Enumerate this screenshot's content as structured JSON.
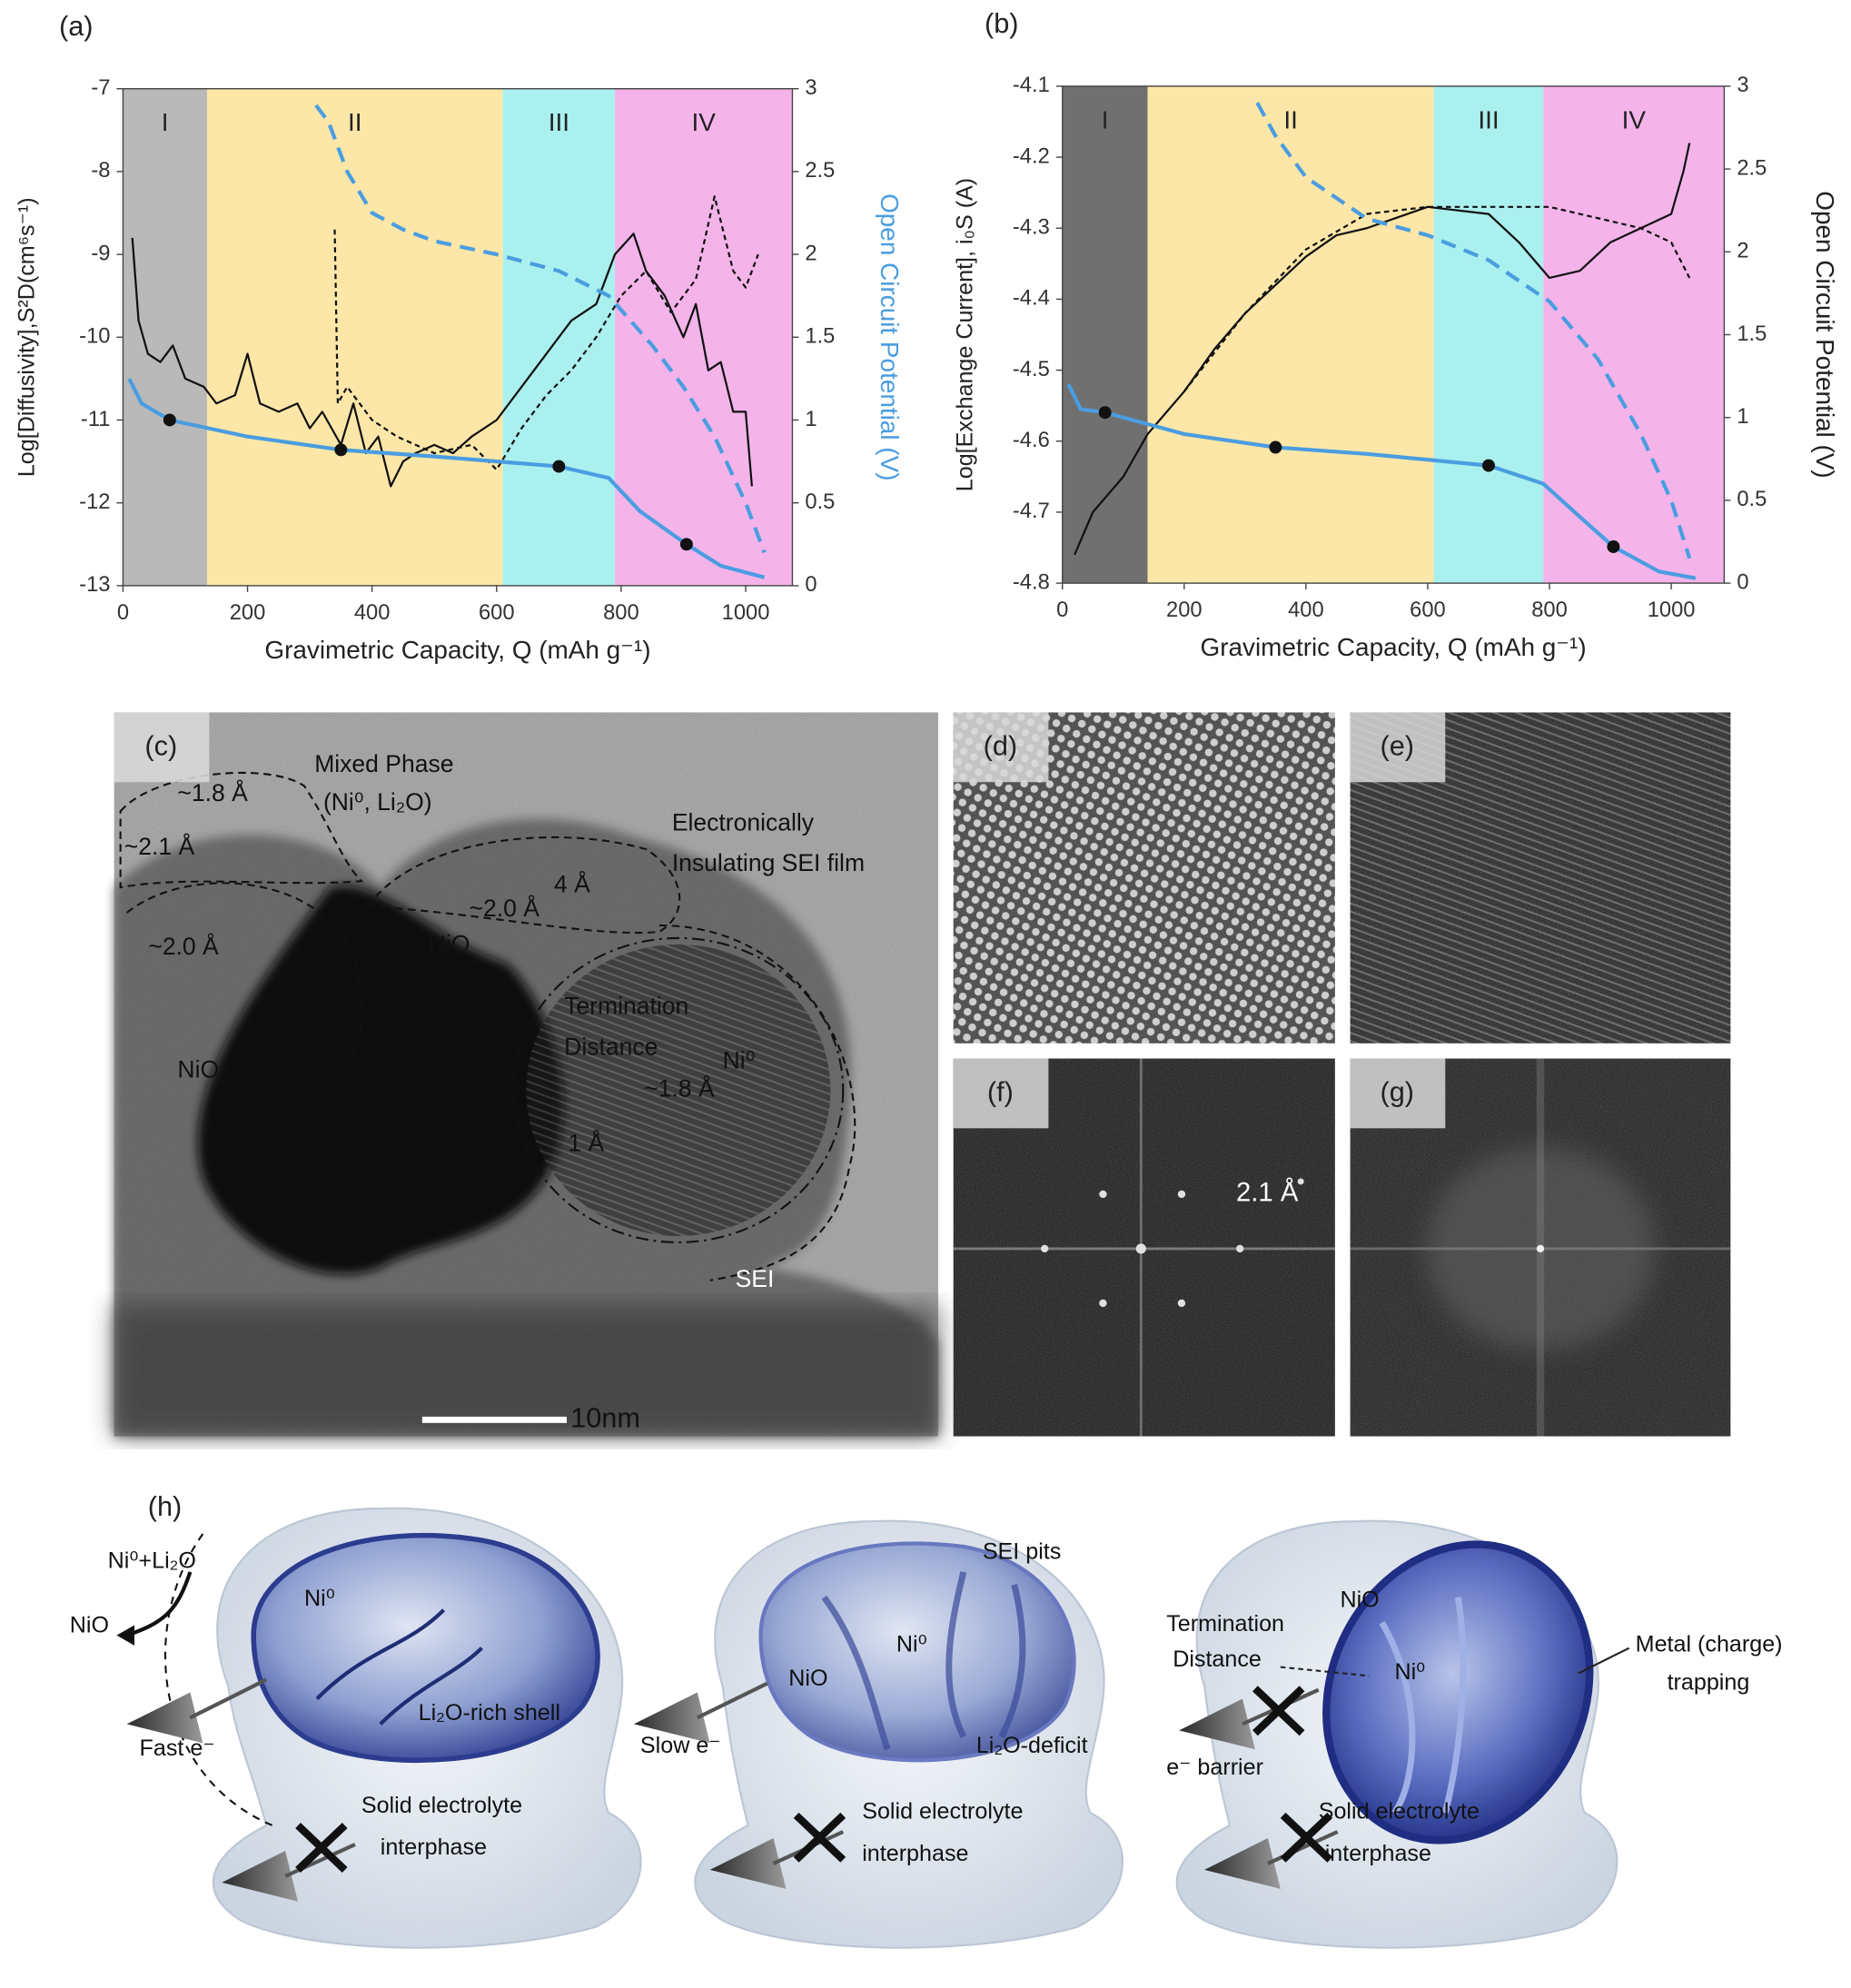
{
  "chart_data": [
    {
      "type": "line",
      "title": "(a)",
      "xlabel": "Gravimetric Capacity, Q (mAh g⁻¹)",
      "ylabel": "Log[Diffusivity],S²D(cm⁶s⁻¹)",
      "y2label": "Open Circuit Potential (V)",
      "y2label_color": "#4a9de0",
      "xlim": [
        0,
        1075
      ],
      "xticks": [
        0,
        200,
        400,
        600,
        800,
        1000
      ],
      "ylim": [
        -13,
        -7
      ],
      "yticks": [
        -13,
        -12,
        -11,
        -10,
        -9,
        -8,
        -7
      ],
      "y2lim": [
        0,
        3
      ],
      "y2ticks": [
        0,
        0.5,
        1,
        1.5,
        2,
        2.5,
        3
      ],
      "regions": [
        {
          "label": "I",
          "from": 0,
          "to": 135,
          "color": "#b9b9b9"
        },
        {
          "label": "II",
          "from": 135,
          "to": 610,
          "color": "#fde7a8"
        },
        {
          "label": "III",
          "from": 610,
          "to": 790,
          "color": "#aaf0ef"
        },
        {
          "label": "IV",
          "from": 790,
          "to": 1075,
          "color": "#f4b4ea"
        }
      ],
      "series": [
        {
          "color": "#111111",
          "dash": false,
          "style": "line",
          "x": [
            15,
            25,
            40,
            60,
            80,
            100,
            130,
            150,
            180,
            200,
            220,
            250,
            280,
            300,
            320,
            350,
            370,
            390,
            410,
            430,
            450,
            470,
            500,
            530,
            560,
            600,
            640,
            680,
            720,
            760,
            790,
            820,
            840,
            870,
            900,
            920,
            940,
            960,
            980,
            1000,
            1010
          ],
          "values": [
            -8.8,
            -9.8,
            -10.2,
            -10.3,
            -10.1,
            -10.5,
            -10.6,
            -10.8,
            -10.7,
            -10.2,
            -10.8,
            -10.9,
            -10.8,
            -11.1,
            -10.9,
            -11.3,
            -10.8,
            -11.4,
            -11.2,
            -11.8,
            -11.5,
            -11.4,
            -11.3,
            -11.4,
            -11.2,
            -11.0,
            -10.6,
            -10.2,
            -9.8,
            -9.6,
            -9.0,
            -8.75,
            -9.2,
            -9.5,
            -10.0,
            -9.6,
            -10.4,
            -10.3,
            -10.9,
            -10.9,
            -11.8
          ]
        },
        {
          "color": "#111111",
          "dash": true,
          "style": "line",
          "x": [
            340,
            345,
            360,
            380,
            400,
            440,
            500,
            560,
            600,
            640,
            680,
            720,
            760,
            800,
            840,
            880,
            920,
            950,
            980,
            1000,
            1020
          ],
          "values": [
            -8.7,
            -10.8,
            -10.6,
            -10.8,
            -11.0,
            -11.2,
            -11.4,
            -11.3,
            -11.6,
            -11.1,
            -10.7,
            -10.4,
            -10.0,
            -9.5,
            -9.2,
            -9.7,
            -9.3,
            -8.3,
            -9.2,
            -9.4,
            -9.0
          ]
        },
        {
          "color": "#4a9de0",
          "dash": true,
          "style": "line",
          "axis": "y2",
          "x": [
            310,
            330,
            360,
            400,
            450,
            500,
            600,
            700,
            780,
            850,
            900,
            950,
            1000,
            1030
          ],
          "values": [
            2.9,
            2.8,
            2.5,
            2.25,
            2.15,
            2.08,
            2.0,
            1.9,
            1.75,
            1.45,
            1.2,
            0.9,
            0.5,
            0.2
          ]
        },
        {
          "color": "#4a9de0",
          "dash": false,
          "style": "line",
          "axis": "y2",
          "x": [
            10,
            30,
            75,
            200,
            350,
            500,
            700,
            780,
            830,
            905,
            960,
            1030
          ],
          "values": [
            1.25,
            1.1,
            1.0,
            0.9,
            0.82,
            0.78,
            0.72,
            0.65,
            0.45,
            0.25,
            0.12,
            0.05
          ]
        },
        {
          "color": "#111111",
          "style": "markers",
          "axis": "y2",
          "x": [
            75,
            350,
            700,
            905
          ],
          "values": [
            1.0,
            0.82,
            0.72,
            0.25
          ]
        }
      ]
    },
    {
      "type": "line",
      "title": "(b)",
      "xlabel": "Gravimetric Capacity, Q (mAh g⁻¹)",
      "ylabel": "Log[Exchange Current], i₀S (A)",
      "y2label": "Open Circuit Potential (V)",
      "y2label_color": "#222222",
      "xlim": [
        0,
        1087
      ],
      "xticks": [
        0,
        200,
        400,
        600,
        800,
        1000
      ],
      "ylim": [
        -4.8,
        -4.1
      ],
      "yticks": [
        -4.8,
        -4.7,
        -4.6,
        -4.5,
        -4.4,
        -4.3,
        -4.2,
        -4.1
      ],
      "y2lim": [
        0,
        3
      ],
      "y2ticks": [
        0,
        0.5,
        1,
        1.5,
        2,
        2.5,
        3
      ],
      "regions": [
        {
          "label": "I",
          "from": 0,
          "to": 140,
          "color": "#707070"
        },
        {
          "label": "II",
          "from": 140,
          "to": 610,
          "color": "#fde7a8"
        },
        {
          "label": "III",
          "from": 610,
          "to": 790,
          "color": "#aaf0ef"
        },
        {
          "label": "IV",
          "from": 790,
          "to": 1087,
          "color": "#f4b4ea"
        }
      ],
      "series": [
        {
          "color": "#111111",
          "dash": false,
          "style": "line",
          "x": [
            20,
            50,
            100,
            140,
            200,
            250,
            300,
            350,
            400,
            450,
            500,
            600,
            700,
            750,
            800,
            850,
            900,
            950,
            1000,
            1020,
            1030
          ],
          "values": [
            -4.76,
            -4.7,
            -4.65,
            -4.59,
            -4.53,
            -4.47,
            -4.42,
            -4.38,
            -4.34,
            -4.31,
            -4.3,
            -4.27,
            -4.28,
            -4.32,
            -4.37,
            -4.36,
            -4.32,
            -4.3,
            -4.28,
            -4.22,
            -4.18
          ]
        },
        {
          "color": "#111111",
          "dash": true,
          "style": "line",
          "x": [
            200,
            300,
            400,
            500,
            600,
            700,
            800,
            900,
            950,
            1000,
            1030
          ],
          "values": [
            -4.53,
            -4.42,
            -4.33,
            -4.28,
            -4.27,
            -4.27,
            -4.27,
            -4.29,
            -4.3,
            -4.32,
            -4.37
          ]
        },
        {
          "color": "#4a9de0",
          "dash": true,
          "style": "line",
          "axis": "y2",
          "x": [
            320,
            350,
            400,
            500,
            600,
            700,
            800,
            880,
            950,
            1000,
            1030
          ],
          "values": [
            2.9,
            2.7,
            2.45,
            2.2,
            2.1,
            1.95,
            1.7,
            1.35,
            0.9,
            0.5,
            0.15
          ]
        },
        {
          "color": "#4a9de0",
          "dash": false,
          "style": "line",
          "axis": "y2",
          "x": [
            10,
            30,
            70,
            200,
            350,
            500,
            700,
            790,
            850,
            905,
            980,
            1040
          ],
          "values": [
            1.2,
            1.05,
            1.03,
            0.9,
            0.82,
            0.78,
            0.71,
            0.6,
            0.4,
            0.22,
            0.07,
            0.03
          ]
        },
        {
          "color": "#111111",
          "style": "markers",
          "axis": "y2",
          "x": [
            70,
            350,
            700,
            905
          ],
          "values": [
            1.03,
            0.82,
            0.71,
            0.22
          ]
        }
      ]
    }
  ],
  "micrographs": {
    "labels": [
      "(c)",
      "(d)",
      "(e)",
      "(f)",
      "(g)"
    ],
    "annotations": [
      "Mixed Phase",
      "(Ni⁰, Li₂O)",
      "Electronically",
      "Insulating SEI film",
      "~1.8 Å",
      "~2.1 Å",
      "~2.0 Å",
      "4 Å",
      "NiO",
      "~2.0 Å",
      "NiO",
      "Termination",
      "Distance",
      "Ni⁰",
      "~1.8 Å",
      "1 Å",
      "SEI"
    ],
    "scale_bar": "10nm",
    "fft_annotation": "2.1 Å"
  },
  "schematic": {
    "label": "(h)",
    "texts": [
      "Ni⁰+Li₂O",
      "NiO",
      "Ni⁰",
      "Fast e⁻",
      "Li₂O-rich shell",
      "Solid electrolyte",
      "interphase",
      "SEI pits",
      "NiO",
      "Ni⁰",
      "Slow e⁻",
      "Li₂O-deficit",
      "Solid electrolyte",
      "interphase",
      "NiO",
      "Termination",
      "Distance",
      "Ni⁰",
      "Metal (charge)",
      "trapping",
      "e⁻ barrier",
      "Solid electrolyte",
      "interphase"
    ]
  }
}
